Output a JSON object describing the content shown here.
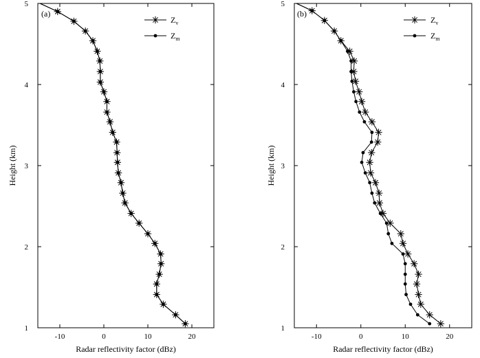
{
  "chart_data": [
    {
      "type": "line",
      "panel_label": "(a)",
      "xlabel": "Radar reflectivity factor (dBz)",
      "ylabel": "Height (km)",
      "xlim": [
        -15,
        25
      ],
      "ylim": [
        1,
        5
      ],
      "xticks": [
        -10,
        0,
        10,
        20
      ],
      "yticks": [
        1,
        2,
        3,
        4,
        5
      ],
      "legend_position": "top-right",
      "series": [
        {
          "name": "Z_v",
          "marker": "star",
          "points": [
            [
              -14.5,
              5.0
            ],
            [
              -10.5,
              4.9
            ],
            [
              -6.8,
              4.78
            ],
            [
              -4.2,
              4.66
            ],
            [
              -2.5,
              4.54
            ],
            [
              -1.5,
              4.41
            ],
            [
              -0.9,
              4.29
            ],
            [
              -0.8,
              4.16
            ],
            [
              -0.8,
              4.03
            ],
            [
              0.0,
              3.91
            ],
            [
              0.7,
              3.79
            ],
            [
              0.7,
              3.66
            ],
            [
              1.4,
              3.54
            ],
            [
              2.0,
              3.41
            ],
            [
              2.9,
              3.29
            ],
            [
              3.0,
              3.16
            ],
            [
              3.1,
              3.04
            ],
            [
              3.3,
              2.91
            ],
            [
              3.9,
              2.79
            ],
            [
              4.3,
              2.66
            ],
            [
              4.8,
              2.54
            ],
            [
              6.2,
              2.41
            ],
            [
              8.0,
              2.29
            ],
            [
              10.0,
              2.16
            ],
            [
              11.6,
              2.04
            ],
            [
              12.9,
              1.91
            ],
            [
              13.0,
              1.79
            ],
            [
              12.6,
              1.66
            ],
            [
              12.0,
              1.54
            ],
            [
              12.0,
              1.41
            ],
            [
              13.5,
              1.29
            ],
            [
              16.3,
              1.16
            ],
            [
              18.5,
              1.05
            ]
          ]
        },
        {
          "name": "Z_m",
          "marker": "dot",
          "points": [
            [
              -14.5,
              5.0
            ],
            [
              -10.5,
              4.9
            ],
            [
              -6.8,
              4.78
            ],
            [
              -4.2,
              4.66
            ],
            [
              -2.5,
              4.54
            ],
            [
              -1.5,
              4.41
            ],
            [
              -0.9,
              4.29
            ],
            [
              -0.8,
              4.16
            ],
            [
              -0.8,
              4.03
            ],
            [
              0.0,
              3.91
            ],
            [
              0.7,
              3.79
            ],
            [
              0.7,
              3.66
            ],
            [
              1.4,
              3.54
            ],
            [
              2.0,
              3.41
            ],
            [
              2.9,
              3.29
            ],
            [
              3.0,
              3.16
            ],
            [
              3.1,
              3.04
            ],
            [
              3.3,
              2.91
            ],
            [
              3.9,
              2.79
            ],
            [
              4.3,
              2.66
            ],
            [
              4.8,
              2.54
            ],
            [
              6.2,
              2.41
            ],
            [
              8.0,
              2.29
            ],
            [
              10.0,
              2.16
            ],
            [
              11.6,
              2.04
            ],
            [
              12.9,
              1.91
            ],
            [
              13.0,
              1.79
            ],
            [
              12.6,
              1.66
            ],
            [
              12.0,
              1.54
            ],
            [
              12.0,
              1.41
            ],
            [
              13.5,
              1.29
            ],
            [
              16.3,
              1.16
            ],
            [
              18.5,
              1.05
            ]
          ]
        }
      ]
    },
    {
      "type": "line",
      "panel_label": "(b)",
      "xlabel": "Radar reflectivity factor (dBz)",
      "ylabel": "Height (km)",
      "xlim": [
        -15,
        25
      ],
      "ylim": [
        1,
        5
      ],
      "xticks": [
        -10,
        0,
        10,
        20
      ],
      "yticks": [
        1,
        2,
        3,
        4,
        5
      ],
      "legend_position": "top-right",
      "series": [
        {
          "name": "Z_v",
          "marker": "star",
          "points": [
            [
              -14.5,
              5.0
            ],
            [
              -11.0,
              4.91
            ],
            [
              -8.2,
              4.79
            ],
            [
              -6.0,
              4.66
            ],
            [
              -4.5,
              4.54
            ],
            [
              -2.5,
              4.41
            ],
            [
              -1.5,
              4.29
            ],
            [
              -1.6,
              4.16
            ],
            [
              -1.2,
              4.04
            ],
            [
              -0.4,
              3.91
            ],
            [
              0.2,
              3.79
            ],
            [
              1.0,
              3.66
            ],
            [
              2.5,
              3.54
            ],
            [
              4.0,
              3.41
            ],
            [
              3.8,
              3.29
            ],
            [
              2.4,
              3.16
            ],
            [
              2.0,
              3.04
            ],
            [
              2.2,
              2.91
            ],
            [
              3.3,
              2.79
            ],
            [
              4.1,
              2.66
            ],
            [
              4.2,
              2.54
            ],
            [
              5.0,
              2.41
            ],
            [
              6.6,
              2.29
            ],
            [
              9.0,
              2.16
            ],
            [
              9.5,
              2.04
            ],
            [
              10.6,
              1.91
            ],
            [
              12.0,
              1.79
            ],
            [
              13.0,
              1.66
            ],
            [
              12.6,
              1.54
            ],
            [
              13.0,
              1.41
            ],
            [
              13.5,
              1.29
            ],
            [
              15.5,
              1.16
            ],
            [
              18.0,
              1.05
            ]
          ]
        },
        {
          "name": "Z_m",
          "marker": "dot",
          "points": [
            [
              -14.5,
              5.0
            ],
            [
              -11.0,
              4.91
            ],
            [
              -8.2,
              4.79
            ],
            [
              -6.0,
              4.66
            ],
            [
              -4.5,
              4.54
            ],
            [
              -3.0,
              4.41
            ],
            [
              -2.2,
              4.29
            ],
            [
              -2.2,
              4.16
            ],
            [
              -2.0,
              4.04
            ],
            [
              -1.6,
              3.91
            ],
            [
              -1.1,
              3.79
            ],
            [
              -0.3,
              3.66
            ],
            [
              0.8,
              3.54
            ],
            [
              2.5,
              3.41
            ],
            [
              2.4,
              3.29
            ],
            [
              0.5,
              3.16
            ],
            [
              0.2,
              3.04
            ],
            [
              1.0,
              2.91
            ],
            [
              2.0,
              2.79
            ],
            [
              2.5,
              2.66
            ],
            [
              3.1,
              2.54
            ],
            [
              4.4,
              2.41
            ],
            [
              5.8,
              2.29
            ],
            [
              6.2,
              2.16
            ],
            [
              7.0,
              2.04
            ],
            [
              9.5,
              1.91
            ],
            [
              10.0,
              1.79
            ],
            [
              10.0,
              1.66
            ],
            [
              10.0,
              1.54
            ],
            [
              10.2,
              1.41
            ],
            [
              11.2,
              1.29
            ],
            [
              12.8,
              1.16
            ],
            [
              15.5,
              1.05
            ]
          ]
        }
      ]
    }
  ]
}
